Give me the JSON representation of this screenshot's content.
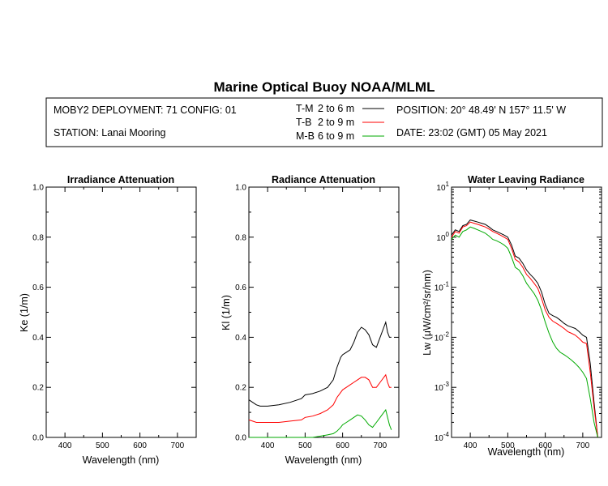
{
  "header": {
    "title": "Marine Optical Buoy NOAA/MLML",
    "deployment": "MOBY2 DEPLOYMENT: 71 CONFIG: 01",
    "station": "STATION: Lanai Mooring",
    "position": "POSITION: 20° 48.49' N   157° 11.5' W",
    "date": "DATE: 23:02 (GMT) 05 May 2021"
  },
  "legend": [
    {
      "name": "T-M",
      "range": "2 to 6  m",
      "color": "#000000"
    },
    {
      "name": "T-B",
      "range": "2 to 9  m",
      "color": "#ff0000"
    },
    {
      "name": "M-B",
      "range": "6 to 9  m",
      "color": "#00aa00"
    }
  ],
  "chart_data": [
    {
      "type": "line",
      "title": "Irradiance Attenuation",
      "xlabel": "Wavelength (nm)",
      "ylabel": "Ke  (1/m)",
      "xlim": [
        350,
        750
      ],
      "ylim": [
        0.0,
        1.0
      ],
      "xticks": [
        "400",
        "500",
        "600",
        "700"
      ],
      "yticks": [
        "0.0",
        "0.2",
        "0.4",
        "0.6",
        "0.8",
        "1.0"
      ],
      "series": []
    },
    {
      "type": "line",
      "title": "Radiance Attenuation",
      "xlabel": "Wavelength (nm)",
      "ylabel": "Kl  (1/m)",
      "xlim": [
        350,
        750
      ],
      "ylim": [
        0.0,
        1.0
      ],
      "xticks": [
        "400",
        "500",
        "600",
        "700"
      ],
      "yticks": [
        "0.0",
        "0.2",
        "0.4",
        "0.6",
        "0.8",
        "1.0"
      ],
      "series": [
        {
          "name": "T-M",
          "color": "#000000",
          "x": [
            350,
            360,
            370,
            380,
            400,
            430,
            460,
            490,
            500,
            520,
            540,
            560,
            575,
            585,
            595,
            600,
            610,
            620,
            630,
            640,
            650,
            660,
            670,
            680,
            690,
            700,
            710,
            715,
            720,
            725,
            730
          ],
          "y": [
            0.15,
            0.14,
            0.13,
            0.125,
            0.125,
            0.13,
            0.14,
            0.155,
            0.17,
            0.175,
            0.185,
            0.2,
            0.23,
            0.28,
            0.32,
            0.33,
            0.34,
            0.35,
            0.38,
            0.42,
            0.44,
            0.43,
            0.41,
            0.37,
            0.36,
            0.4,
            0.44,
            0.46,
            0.42,
            0.4,
            0.4
          ]
        },
        {
          "name": "T-B",
          "color": "#ff0000",
          "x": [
            350,
            360,
            370,
            380,
            400,
            430,
            460,
            490,
            500,
            520,
            540,
            560,
            575,
            585,
            595,
            600,
            610,
            620,
            630,
            640,
            650,
            660,
            670,
            680,
            690,
            700,
            710,
            715,
            720,
            725,
            730
          ],
          "y": [
            0.07,
            0.065,
            0.06,
            0.06,
            0.06,
            0.06,
            0.065,
            0.07,
            0.08,
            0.085,
            0.095,
            0.11,
            0.13,
            0.16,
            0.18,
            0.19,
            0.2,
            0.21,
            0.22,
            0.23,
            0.24,
            0.24,
            0.23,
            0.2,
            0.2,
            0.22,
            0.24,
            0.25,
            0.22,
            0.2,
            0.2
          ]
        },
        {
          "name": "M-B",
          "color": "#00aa00",
          "x": [
            350,
            360,
            380,
            400,
            430,
            460,
            490,
            500,
            520,
            540,
            560,
            575,
            585,
            595,
            600,
            610,
            620,
            630,
            640,
            650,
            660,
            670,
            680,
            690,
            700,
            710,
            715,
            720,
            725,
            730
          ],
          "y": [
            0.0,
            0.0,
            0.0,
            0.0,
            0.0,
            0.0,
            0.0,
            0.0,
            0.0,
            0.005,
            0.01,
            0.015,
            0.025,
            0.04,
            0.05,
            0.06,
            0.07,
            0.08,
            0.09,
            0.085,
            0.07,
            0.05,
            0.04,
            0.06,
            0.08,
            0.1,
            0.11,
            0.08,
            0.05,
            0.03
          ]
        }
      ]
    },
    {
      "type": "line",
      "title": "Water Leaving Radiance",
      "xlabel": "Wavelength (nm)",
      "ylabel": "Lw  (μW/cm²/sr/nm)",
      "xlim": [
        350,
        750
      ],
      "ylim": [
        0.0001,
        10
      ],
      "yscale": "log",
      "xticks": [
        "400",
        "500",
        "600",
        "700"
      ],
      "yticks": [
        "10",
        "10",
        "10",
        "10",
        "10",
        "10"
      ],
      "ytick_exponents": [
        "-4",
        "-3",
        "-2",
        "-1",
        "0",
        "1"
      ],
      "series": [
        {
          "name": "T-M",
          "color": "#000000",
          "x": [
            350,
            360,
            370,
            380,
            390,
            400,
            410,
            420,
            430,
            440,
            450,
            460,
            470,
            480,
            490,
            500,
            510,
            520,
            530,
            540,
            550,
            560,
            570,
            580,
            590,
            600,
            610,
            620,
            630,
            640,
            650,
            660,
            670,
            680,
            690,
            700,
            710,
            720,
            730,
            740
          ],
          "y": [
            1.1,
            1.4,
            1.3,
            1.7,
            1.8,
            2.2,
            2.1,
            2.0,
            1.9,
            1.8,
            1.6,
            1.4,
            1.3,
            1.2,
            1.1,
            1.0,
            0.7,
            0.42,
            0.38,
            0.3,
            0.22,
            0.18,
            0.15,
            0.12,
            0.08,
            0.045,
            0.03,
            0.027,
            0.025,
            0.022,
            0.019,
            0.017,
            0.016,
            0.015,
            0.013,
            0.011,
            0.01,
            0.003,
            0.0005,
            0.0001
          ]
        },
        {
          "name": "T-B",
          "color": "#ff0000",
          "x": [
            350,
            360,
            370,
            380,
            390,
            400,
            410,
            420,
            430,
            440,
            450,
            460,
            470,
            480,
            490,
            500,
            510,
            520,
            530,
            540,
            550,
            560,
            570,
            580,
            590,
            600,
            610,
            620,
            630,
            640,
            650,
            660,
            670,
            680,
            690,
            700,
            710,
            720,
            730,
            740
          ],
          "y": [
            1.0,
            1.3,
            1.2,
            1.6,
            1.7,
            2.0,
            1.9,
            1.8,
            1.7,
            1.6,
            1.45,
            1.3,
            1.2,
            1.1,
            1.0,
            0.9,
            0.6,
            0.36,
            0.32,
            0.25,
            0.18,
            0.15,
            0.12,
            0.095,
            0.06,
            0.035,
            0.025,
            0.021,
            0.019,
            0.017,
            0.015,
            0.013,
            0.012,
            0.011,
            0.0095,
            0.008,
            0.0075,
            0.002,
            0.0004,
            0.0001
          ]
        },
        {
          "name": "M-B",
          "color": "#00aa00",
          "x": [
            350,
            360,
            370,
            380,
            390,
            400,
            410,
            420,
            430,
            440,
            450,
            460,
            470,
            480,
            490,
            500,
            510,
            520,
            530,
            540,
            550,
            560,
            570,
            580,
            590,
            600,
            610,
            620,
            630,
            640,
            650,
            660,
            670,
            680,
            690,
            700,
            710,
            720,
            730,
            740
          ],
          "y": [
            0.9,
            1.1,
            1.0,
            1.3,
            1.4,
            1.6,
            1.5,
            1.4,
            1.3,
            1.2,
            1.05,
            0.9,
            0.85,
            0.78,
            0.7,
            0.6,
            0.4,
            0.25,
            0.22,
            0.17,
            0.12,
            0.095,
            0.075,
            0.055,
            0.035,
            0.02,
            0.012,
            0.008,
            0.006,
            0.005,
            0.0045,
            0.004,
            0.0035,
            0.003,
            0.0025,
            0.002,
            0.0015,
            0.0006,
            0.0002,
            0.0001
          ]
        }
      ]
    }
  ]
}
